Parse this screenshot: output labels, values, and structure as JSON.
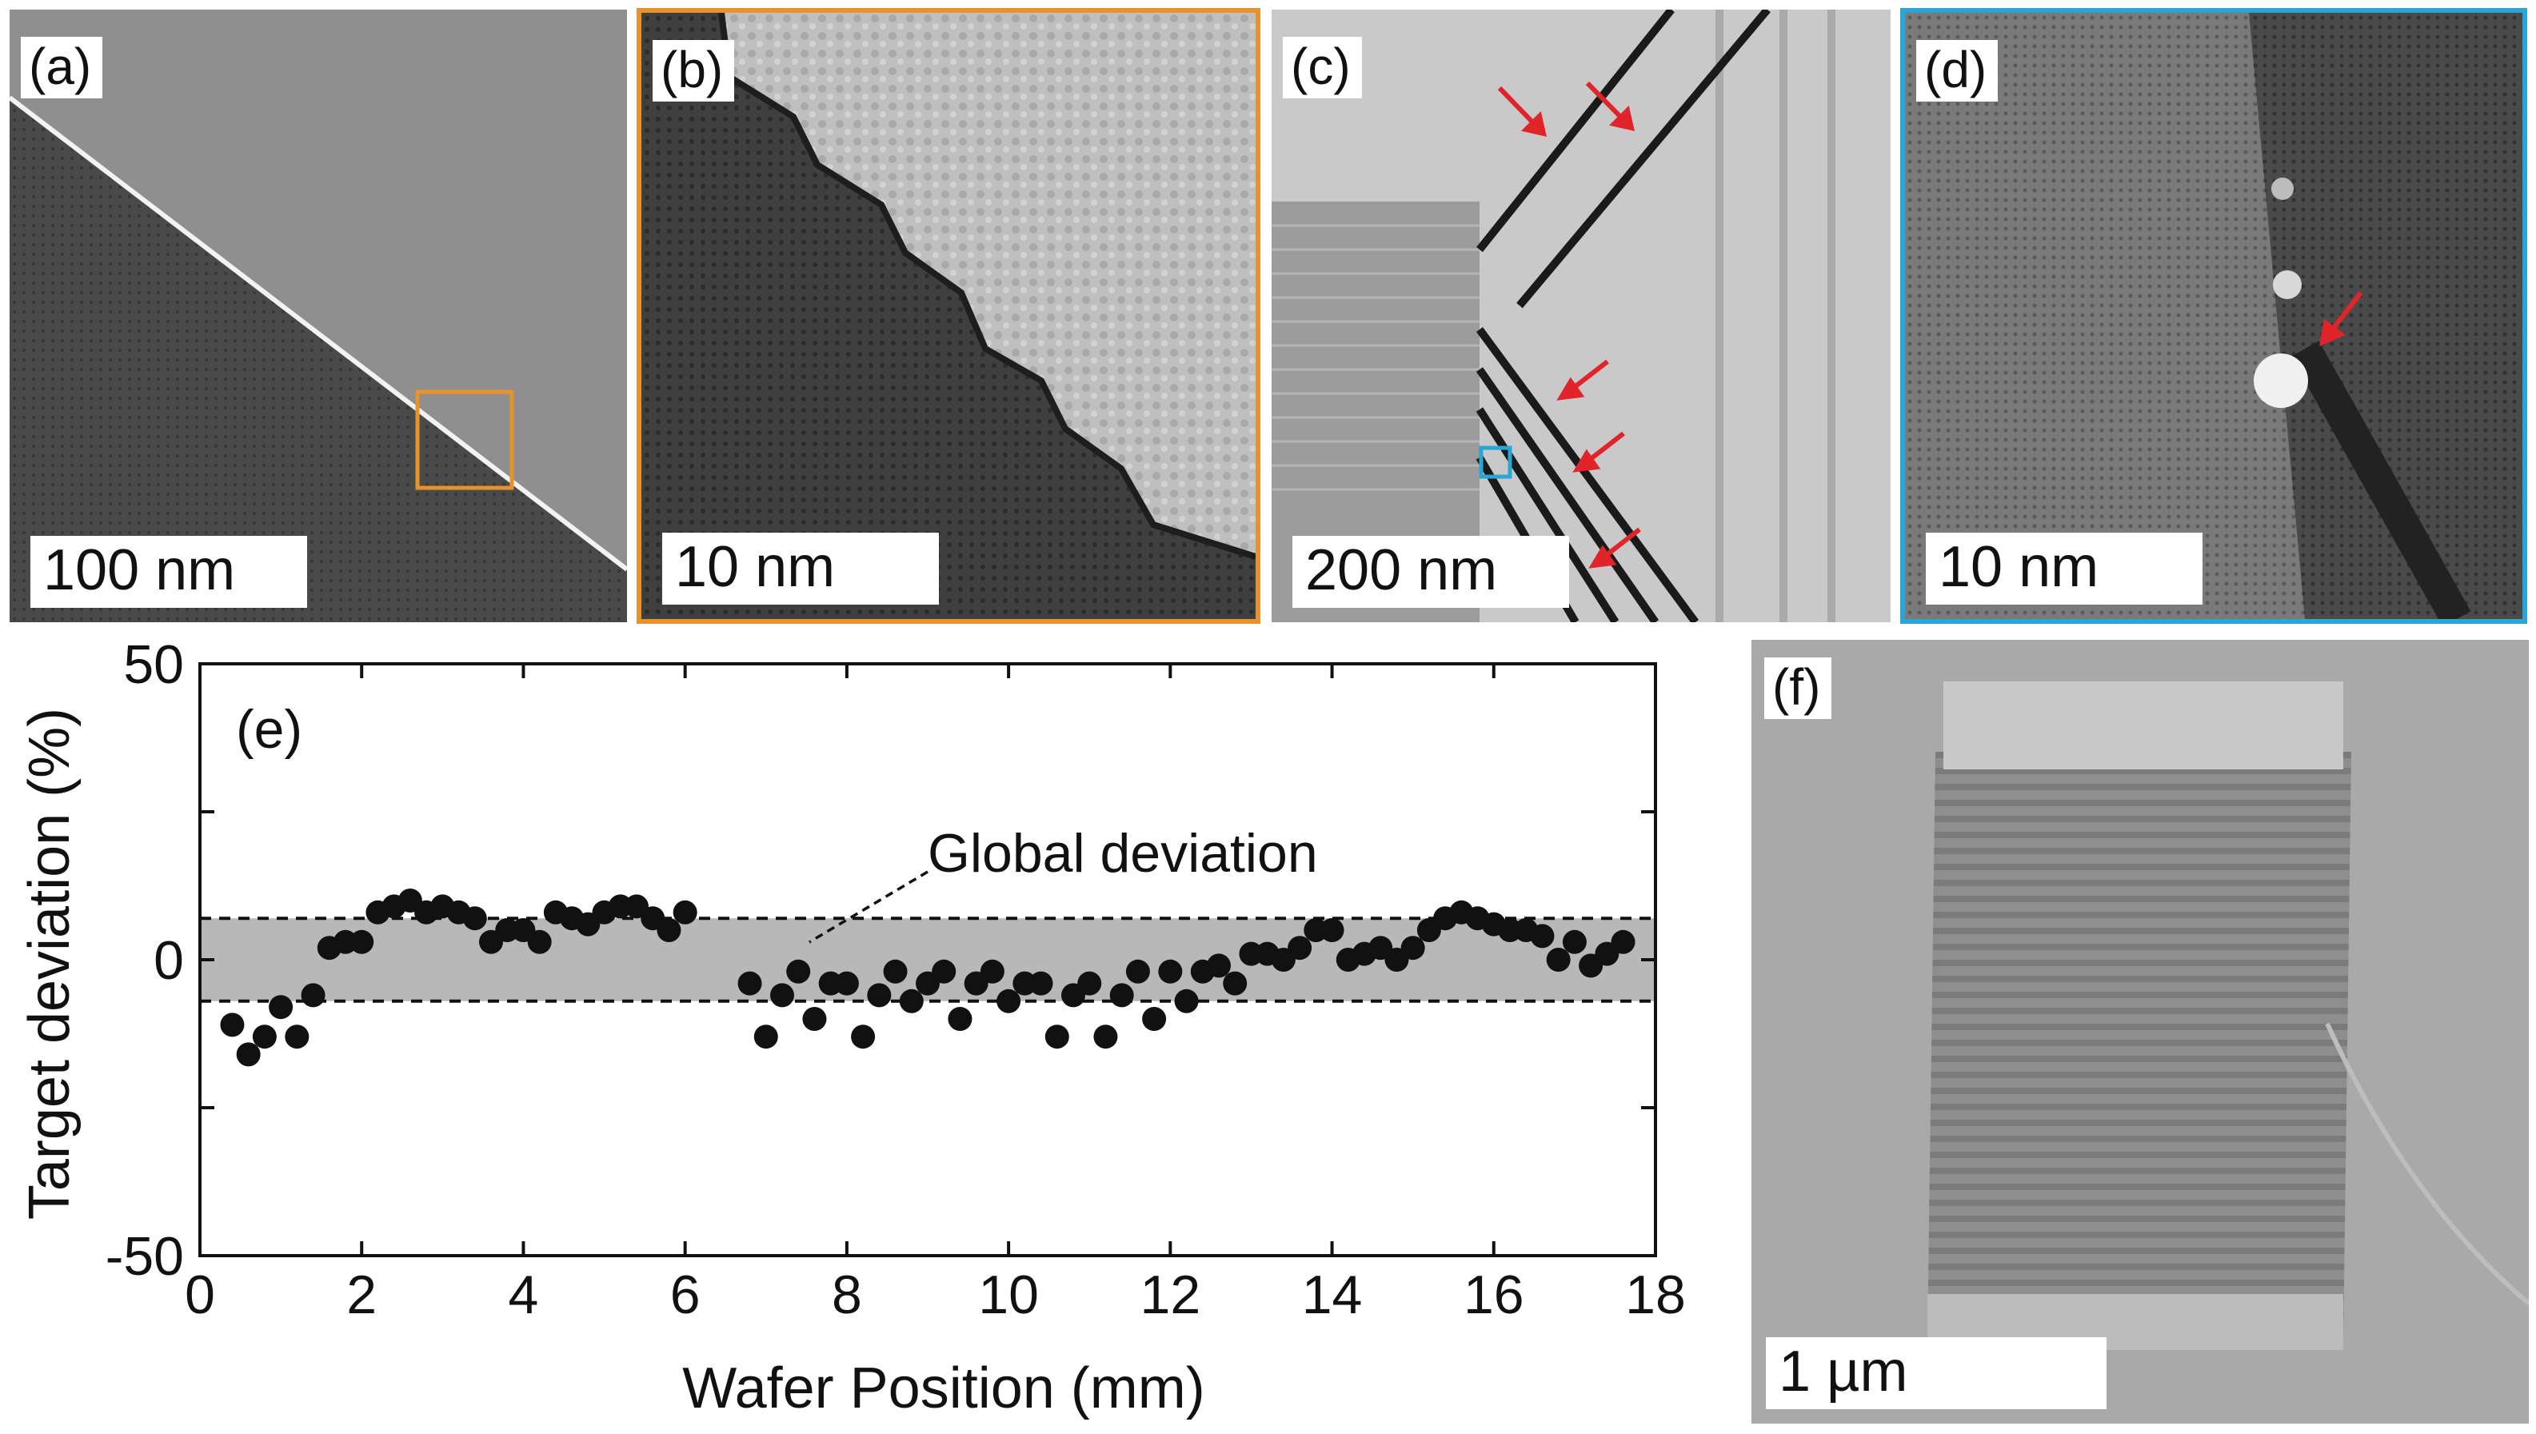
{
  "panels": {
    "a": {
      "label": "(a)",
      "scale": "100 nm"
    },
    "b": {
      "label": "(b)",
      "scale": "10 nm"
    },
    "c": {
      "label": "(c)",
      "scale": "200 nm"
    },
    "d": {
      "label": "(d)",
      "scale": "10 nm"
    },
    "f": {
      "label": "(f)",
      "scale": "1 µm"
    }
  },
  "colors": {
    "orange": "#e8922e",
    "cyan": "#2aa6d6",
    "red": "#e0242a",
    "band": "#b8b8b8"
  },
  "chart_data": {
    "type": "scatter",
    "panel_label": "(e)",
    "xlabel": "Wafer Position (mm)",
    "ylabel": "Target deviation (%)",
    "xlim": [
      0,
      18
    ],
    "ylim": [
      -50,
      50
    ],
    "xticks": [
      0,
      2,
      4,
      6,
      8,
      10,
      12,
      14,
      16,
      18
    ],
    "yticks": [
      50,
      0,
      -50
    ],
    "annotation": "Global deviation",
    "band": [
      -7,
      7
    ],
    "series": [
      {
        "name": "Target deviation",
        "x": [
          0.4,
          0.6,
          0.8,
          1.0,
          1.2,
          1.4,
          1.6,
          1.8,
          2.0,
          2.2,
          2.4,
          2.6,
          2.8,
          3.0,
          3.2,
          3.4,
          3.6,
          3.8,
          4.0,
          4.2,
          4.4,
          4.6,
          4.8,
          5.0,
          5.2,
          5.4,
          5.6,
          5.8,
          6.0,
          6.8,
          7.0,
          7.2,
          7.4,
          7.6,
          7.8,
          8.0,
          8.2,
          8.4,
          8.6,
          8.8,
          9.0,
          9.2,
          9.4,
          9.6,
          9.8,
          10.0,
          10.2,
          10.4,
          10.6,
          10.8,
          11.0,
          11.2,
          11.4,
          11.6,
          11.8,
          12.0,
          12.2,
          12.4,
          12.6,
          12.8,
          13.0,
          13.2,
          13.4,
          13.6,
          13.8,
          14.0,
          14.2,
          14.4,
          14.6,
          14.8,
          15.0,
          15.2,
          15.4,
          15.6,
          15.8,
          16.0,
          16.2,
          16.4,
          16.6,
          16.8,
          17.0,
          17.2,
          17.4,
          17.6
        ],
        "y": [
          -11,
          -16,
          -13,
          -8,
          -13,
          -6,
          2,
          3,
          3,
          8,
          9,
          10,
          8,
          9,
          8,
          7,
          3,
          5,
          5,
          3,
          8,
          7,
          6,
          8,
          9,
          9,
          7,
          5,
          8,
          -4,
          -13,
          -6,
          -2,
          -10,
          -4,
          -4,
          -13,
          -6,
          -2,
          -7,
          -4,
          -2,
          -10,
          -4,
          -2,
          -7,
          -4,
          -4,
          -13,
          -6,
          -4,
          -13,
          -6,
          -2,
          -10,
          -2,
          -7,
          -2,
          -1,
          -4,
          1,
          1,
          0,
          2,
          5,
          5,
          0,
          1,
          2,
          0,
          2,
          5,
          7,
          8,
          7,
          6,
          5,
          5,
          4,
          0,
          3,
          -1,
          1,
          3
        ]
      }
    ]
  }
}
